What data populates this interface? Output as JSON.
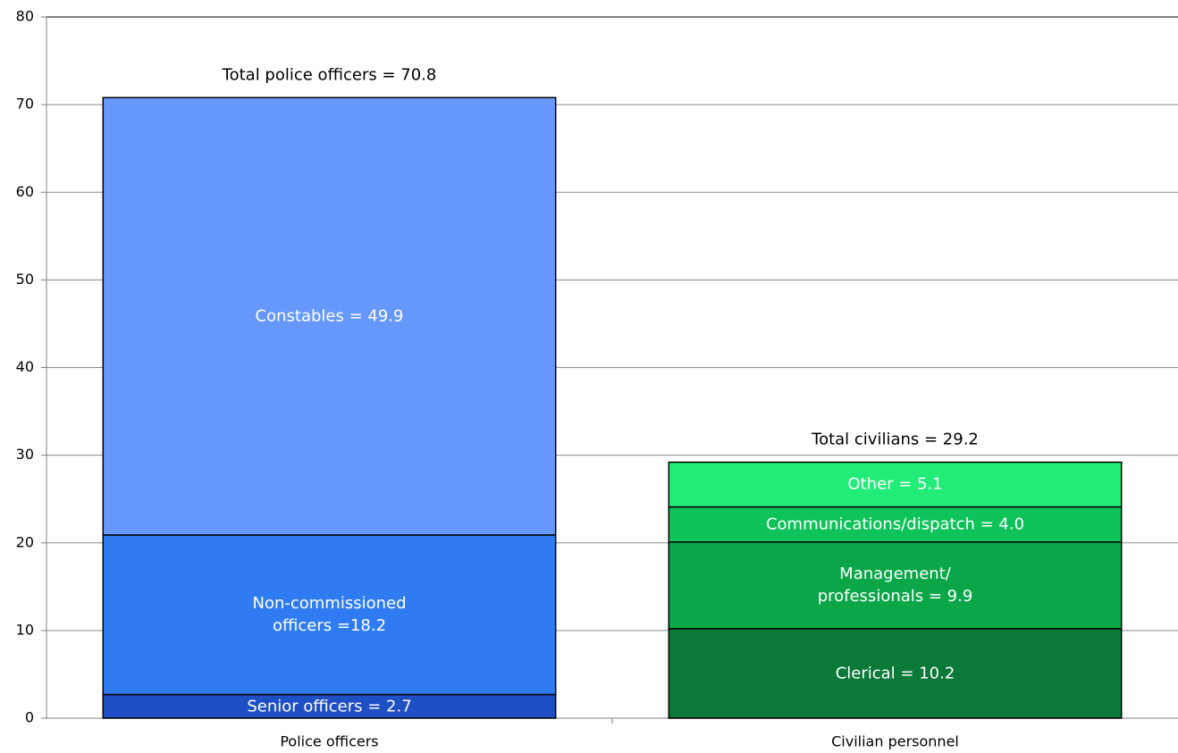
{
  "chart_data": {
    "type": "stacked_bar",
    "categories": [
      "Police officers",
      "Civilian personnel"
    ],
    "series": [
      {
        "color": "#1f4fc4",
        "values": [
          2.7,
          null
        ],
        "value_labels": [
          "Senior officers = 2.7",
          null
        ]
      },
      {
        "color": "#2f7cf2",
        "values": [
          18.2,
          null
        ],
        "value_labels": [
          "Non-commissioned\nofficers =18.2",
          null
        ]
      },
      {
        "color": "#6698fc",
        "values": [
          49.9,
          null
        ],
        "value_labels": [
          "Constables = 49.9",
          null
        ]
      },
      {
        "color": "#0b7a38",
        "values": [
          null,
          10.2
        ],
        "value_labels": [
          null,
          "Clerical = 10.2"
        ]
      },
      {
        "color": "#0aa648",
        "values": [
          null,
          9.9
        ],
        "value_labels": [
          null,
          "Management/\nprofessionals = 9.9"
        ]
      },
      {
        "color": "#0ec35a",
        "values": [
          null,
          4.0
        ],
        "value_labels": [
          null,
          "Communications/dispatch = 4.0"
        ]
      },
      {
        "color": "#22ec78",
        "values": [
          null,
          5.1
        ],
        "value_labels": [
          null,
          "Other = 5.1"
        ]
      }
    ],
    "totals": [
      70.8,
      29.2
    ],
    "total_labels": [
      "Total police officers = 70.8",
      "Total civilians = 29.2"
    ],
    "ylim": [
      0,
      80
    ],
    "yticks": [
      0,
      10,
      20,
      30,
      40,
      50,
      60,
      70,
      80
    ],
    "grid": true
  }
}
